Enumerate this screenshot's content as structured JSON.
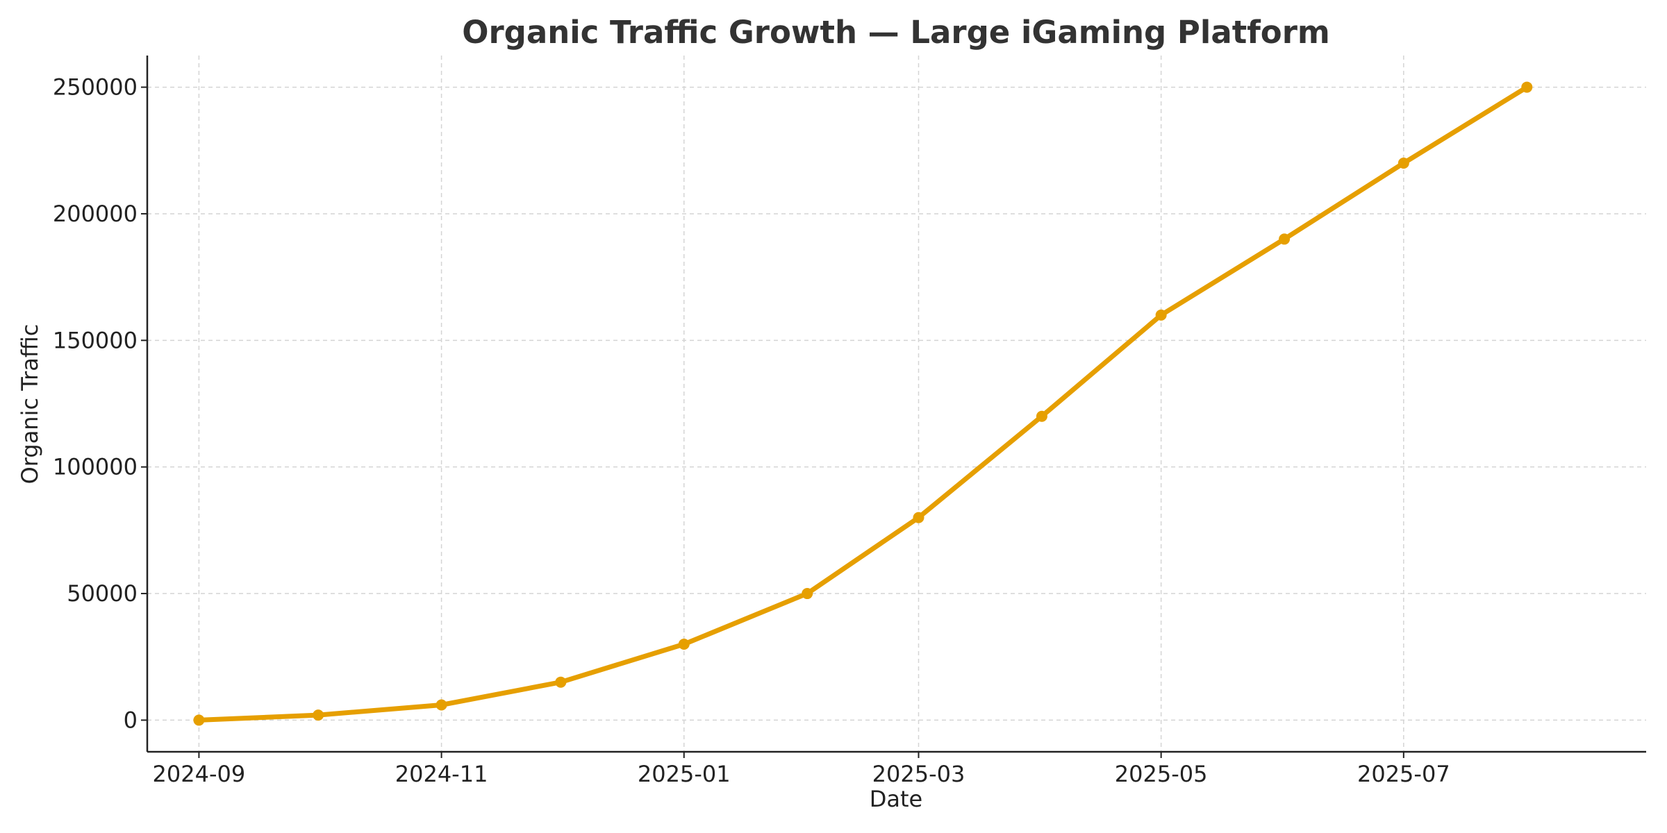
{
  "chart_data": {
    "type": "line",
    "title": "Organic Traffic Growth — Large iGaming Platform",
    "xlabel": "Date",
    "ylabel": "Organic Traffic",
    "x": [
      "2024-09-01",
      "2024-10-01",
      "2024-11-01",
      "2024-12-01",
      "2025-01-01",
      "2025-02-01",
      "2025-03-01",
      "2025-04-01",
      "2025-05-01",
      "2025-06-01",
      "2025-07-01",
      "2025-08-01"
    ],
    "series": [
      {
        "values": [
          0,
          2000,
          6000,
          15000,
          30000,
          50000,
          80000,
          120000,
          160000,
          190000,
          220000,
          250000
        ],
        "color": "#E69F00"
      }
    ],
    "x_ticks": [
      "2024-09",
      "2024-11",
      "2025-01",
      "2025-03",
      "2025-05",
      "2025-07"
    ],
    "y_ticks": [
      0,
      50000,
      100000,
      150000,
      200000,
      250000
    ],
    "ylim": [
      -12500,
      262500
    ],
    "xlim": [
      "2024-08-19",
      "2025-08-31"
    ],
    "grid": true,
    "legend": "none"
  }
}
